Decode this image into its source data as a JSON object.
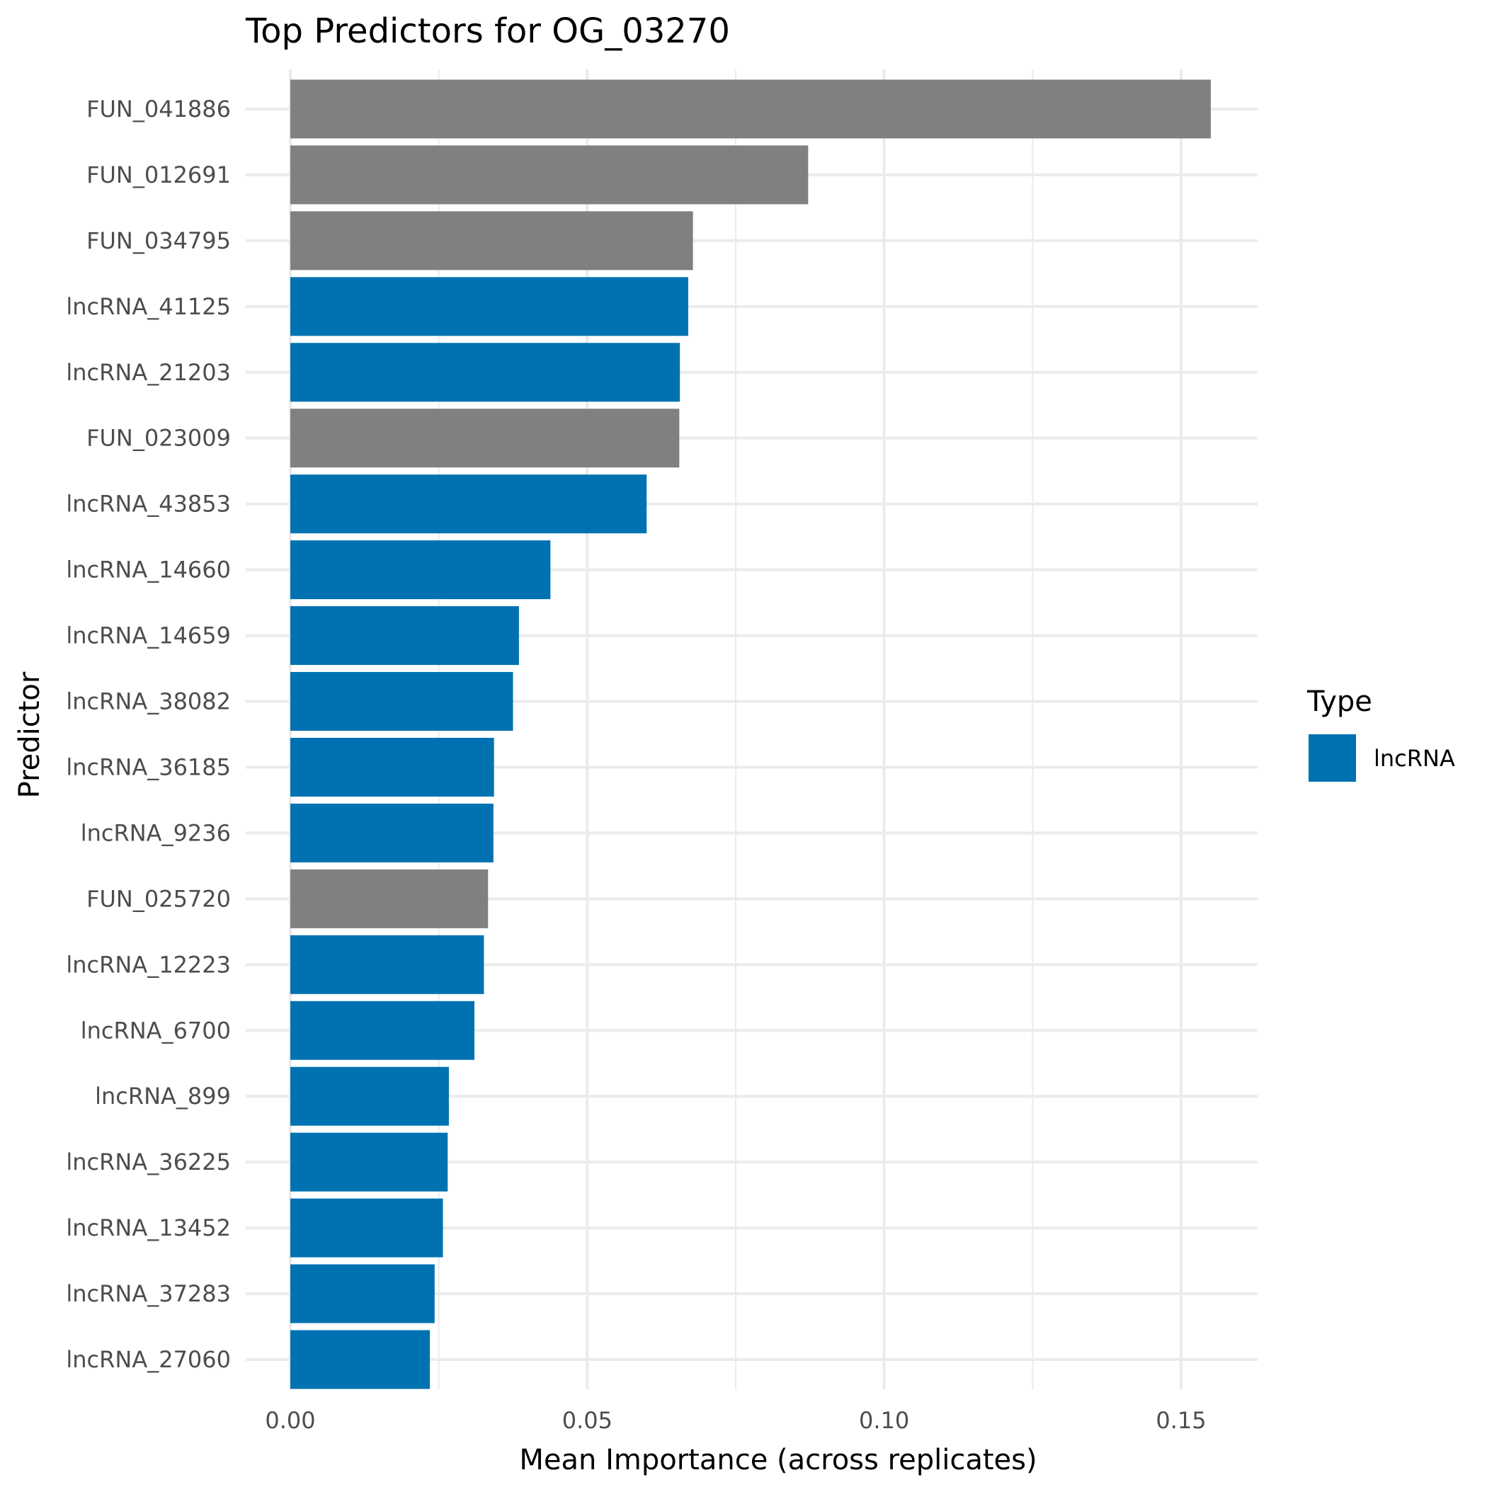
{
  "chart_data": {
    "type": "bar",
    "orientation": "horizontal",
    "title": "Top Predictors for OG_03270",
    "xlabel": "Mean Importance (across replicates)",
    "ylabel": "Predictor",
    "xlim": [
      0,
      0.163
    ],
    "x_ticks": [
      {
        "value": 0.0,
        "label": "0.00"
      },
      {
        "value": 0.05,
        "label": "0.05"
      },
      {
        "value": 0.1,
        "label": "0.10"
      },
      {
        "value": 0.15,
        "label": "0.15"
      }
    ],
    "grid": true,
    "legend": {
      "title": "Type",
      "position": "right",
      "entries": [
        {
          "label": "lncRNA",
          "color": "#0072B2"
        }
      ]
    },
    "colors": {
      "lncRNA": "#0072B2",
      "other": "#808080"
    },
    "categories": [
      "FUN_041886",
      "FUN_012691",
      "FUN_034795",
      "lncRNA_41125",
      "lncRNA_21203",
      "FUN_023009",
      "lncRNA_43853",
      "lncRNA_14660",
      "lncRNA_14659",
      "lncRNA_38082",
      "lncRNA_36185",
      "lncRNA_9236",
      "FUN_025720",
      "lncRNA_12223",
      "lncRNA_6700",
      "lncRNA_899",
      "lncRNA_36225",
      "lncRNA_13452",
      "lncRNA_37283",
      "lncRNA_27060"
    ],
    "values": [
      0.155,
      0.0872,
      0.0678,
      0.067,
      0.0656,
      0.0655,
      0.06,
      0.0438,
      0.0385,
      0.0375,
      0.0343,
      0.0342,
      0.0333,
      0.0326,
      0.031,
      0.0267,
      0.0265,
      0.0257,
      0.0243,
      0.0235
    ],
    "types": [
      "other",
      "other",
      "other",
      "lncRNA",
      "lncRNA",
      "other",
      "lncRNA",
      "lncRNA",
      "lncRNA",
      "lncRNA",
      "lncRNA",
      "lncRNA",
      "other",
      "lncRNA",
      "lncRNA",
      "lncRNA",
      "lncRNA",
      "lncRNA",
      "lncRNA",
      "lncRNA"
    ]
  }
}
